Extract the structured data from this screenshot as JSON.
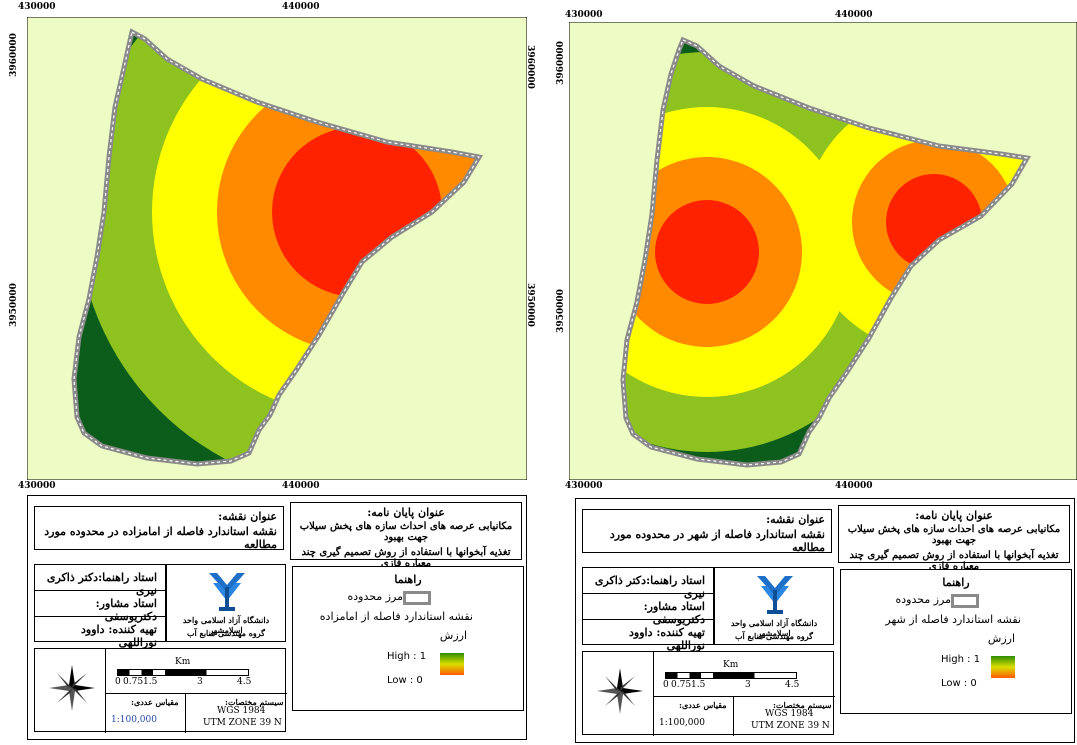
{
  "ticks": {
    "x_top": [
      "430000",
      "440000"
    ],
    "x_bottom": [
      "430000",
      "440000"
    ],
    "y_left_top": "3960000",
    "y_left_mid": "3950000",
    "y_right_top": "3960000",
    "y_right_mid": "3950000"
  },
  "layout": {
    "thesis_title_heading": "عنوان پایان نامه:",
    "thesis_title_line1": "مکانیابی عرصه های احداث سازه های پخش سیلاب جهت بهبود",
    "thesis_title_line2": "تغذیه آبخوانها با استفاده از روش تصمیم گیری چند معیاره فازی",
    "map_title_heading": "عنوان نقشه:",
    "advisor_main": "استاد راهنما:دکتر ذاکری نیری",
    "advisor_second": "استاد مشاور: دکتریوسفی",
    "prepared_by": "تهیه کننده: داوود نوراللهی",
    "university": "دانشگاه آزاد اسلامی واحد اسلامشهر",
    "department": "گروه مهندسی منابع آب",
    "legend_heading": "راهنما",
    "legend_boundary": "مرز محدوده",
    "legend_value": "ارزش",
    "high": "High : 1",
    "low": "Low : 0",
    "scale_unit": "Km",
    "scale_ticks": [
      "0",
      "0.75",
      "1.5",
      "3",
      "4.5"
    ],
    "coord_heading": "سیستم مختصات:",
    "coord_datum": "WGS 1984",
    "coord_zone": "UTM ZONE 39 N",
    "scale_heading": "مقیاس عددی:",
    "scale_value": "1:100,000"
  },
  "maps": [
    {
      "map_title": "نقشه استاندارد فاصله از امامزاده در محدوده مورد مطالعه",
      "legend_layer": "نقشه استاندارد فاصله از امامزاده"
    },
    {
      "map_title": "نقشه استاندارد فاصله از شهر در محدوده مورد مطالعه",
      "legend_layer": "نقشه استاندارد فاصله از شهر"
    }
  ],
  "colors": {
    "background": "#edfcc4",
    "class_1": "#ff2200",
    "class_2": "#ff8a00",
    "class_3": "#ffff00",
    "class_4": "#8ec21f",
    "class_5": "#0c5c1c",
    "boundary": "#8a8a8a"
  }
}
